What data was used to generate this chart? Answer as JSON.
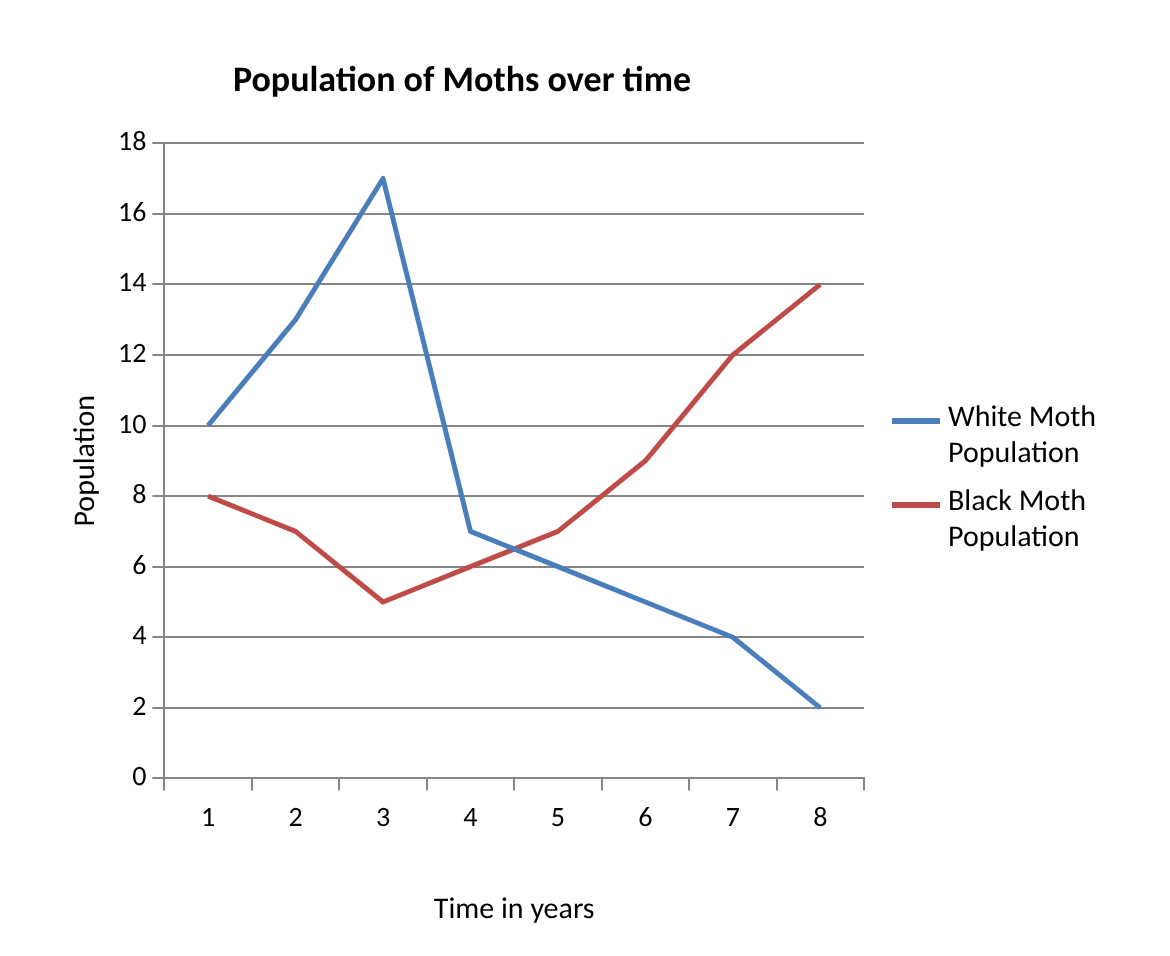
{
  "chart_data": {
    "type": "line",
    "title": "Population of Moths over time",
    "xlabel": "Time in years",
    "ylabel": "Population",
    "categories": [
      "1",
      "2",
      "3",
      "4",
      "5",
      "6",
      "7",
      "8"
    ],
    "series": [
      {
        "name": "White Moth Population",
        "color": "#4a7ebb",
        "values": [
          10,
          13,
          17,
          7,
          6,
          5,
          4,
          2
        ]
      },
      {
        "name": "Black Moth Population",
        "color": "#be4b48",
        "values": [
          8,
          7,
          5,
          6,
          7,
          9,
          12,
          14
        ]
      }
    ],
    "ylim": [
      0,
      18
    ],
    "yticks": [
      0,
      2,
      4,
      6,
      8,
      10,
      12,
      14,
      16,
      18
    ],
    "grid": "y",
    "legend": "right",
    "marker": "none"
  }
}
